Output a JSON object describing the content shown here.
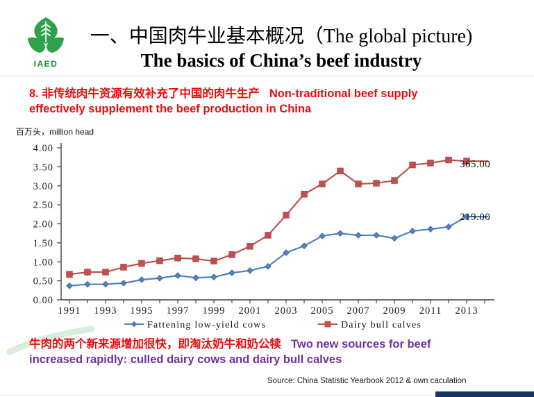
{
  "slide": {
    "logo": {
      "label": "IAED"
    },
    "title": {
      "line1_zh": "一、中国肉牛业基本概况",
      "line1_en": "（The global picture)",
      "line2": "The basics of China’s beef industry"
    },
    "heading": {
      "zh": "8. 非传统肉牛资源有效补充了中国的肉牛生产",
      "en1": "Non-traditional beef supply",
      "en2": "effectively supplement the beef production in China"
    },
    "footnote": {
      "zh": "牛肉的两个新来源增加很快，即淘汰奶牛和奶公犊",
      "en1": "Two new sources for beef",
      "en2": "increased rapidly: culled dairy cows and dairy bull calves"
    },
    "source": "Source: China Statistic Yearbook 2012 & own caculation",
    "colors": {
      "heading_red": "#ee0b0b",
      "footnote_purple": "#7030a0",
      "navy_bar": "#17375e",
      "logo_green": "#2fa14b"
    }
  },
  "chart_data": {
    "type": "line",
    "unit_label": "百万头，million head",
    "x": [
      1991,
      1992,
      1993,
      1994,
      1995,
      1996,
      1997,
      1998,
      1999,
      2000,
      2001,
      2002,
      2003,
      2004,
      2005,
      2006,
      2007,
      2008,
      2009,
      2010,
      2011,
      2012,
      2013
    ],
    "x_tick_labels": [
      "1991",
      "1993",
      "1995",
      "1997",
      "1999",
      "2001",
      "2003",
      "2005",
      "2007",
      "2009",
      "2011",
      "2013"
    ],
    "y_tick_labels": [
      "0.00",
      "0.50",
      "1.00",
      "1.50",
      "2.00",
      "2.50",
      "3.00",
      "3.50",
      "4.00"
    ],
    "ylim": [
      0,
      4
    ],
    "y_tick_step": 0.5,
    "grid": false,
    "legend_position": "bottom",
    "series": [
      {
        "name": "Fattening low-yield cows",
        "marker": "diamond",
        "color": "#4f81bd",
        "values": [
          0.37,
          0.41,
          0.41,
          0.44,
          0.53,
          0.57,
          0.64,
          0.58,
          0.6,
          0.71,
          0.77,
          0.88,
          1.24,
          1.42,
          1.68,
          1.75,
          1.7,
          1.7,
          1.62,
          1.81,
          1.86,
          1.92,
          2.19
        ],
        "end_label": "219.00"
      },
      {
        "name": "Dairy bull calves",
        "marker": "square",
        "color": "#c0504d",
        "values": [
          0.67,
          0.73,
          0.73,
          0.86,
          0.96,
          1.03,
          1.1,
          1.08,
          1.02,
          1.19,
          1.41,
          1.7,
          2.23,
          2.78,
          3.05,
          3.39,
          3.05,
          3.07,
          3.14,
          3.55,
          3.6,
          3.68,
          3.65
        ],
        "end_label": "365.00"
      }
    ]
  }
}
